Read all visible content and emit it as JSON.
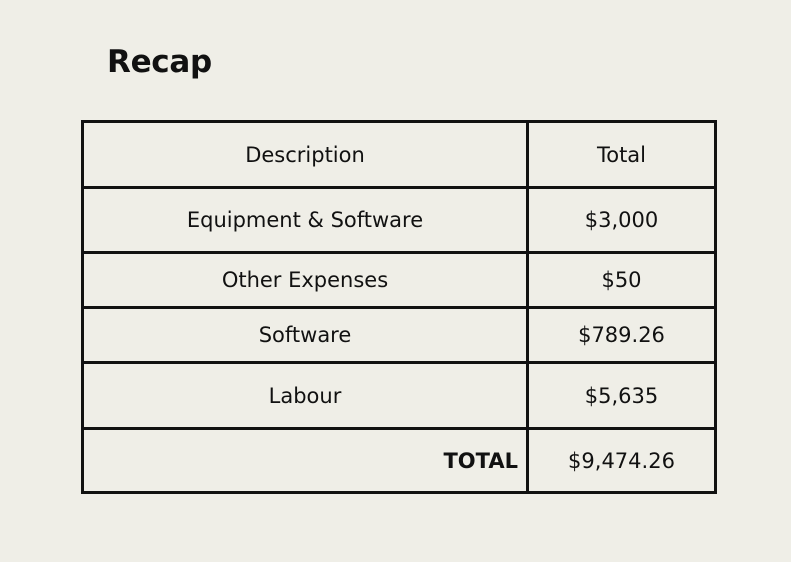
{
  "document": {
    "title": "Recap"
  },
  "recap_table": {
    "headers": {
      "description": "Description",
      "total": "Total"
    },
    "rows": [
      {
        "description": "Equipment & Software",
        "total": "$3,000"
      },
      {
        "description": "Other Expenses",
        "total": "$50"
      },
      {
        "description": "Software",
        "total": "$789.26"
      },
      {
        "description": "Labour",
        "total": "$5,635"
      }
    ],
    "total_row": {
      "label": "TOTAL",
      "value": "$9,474.26"
    }
  }
}
